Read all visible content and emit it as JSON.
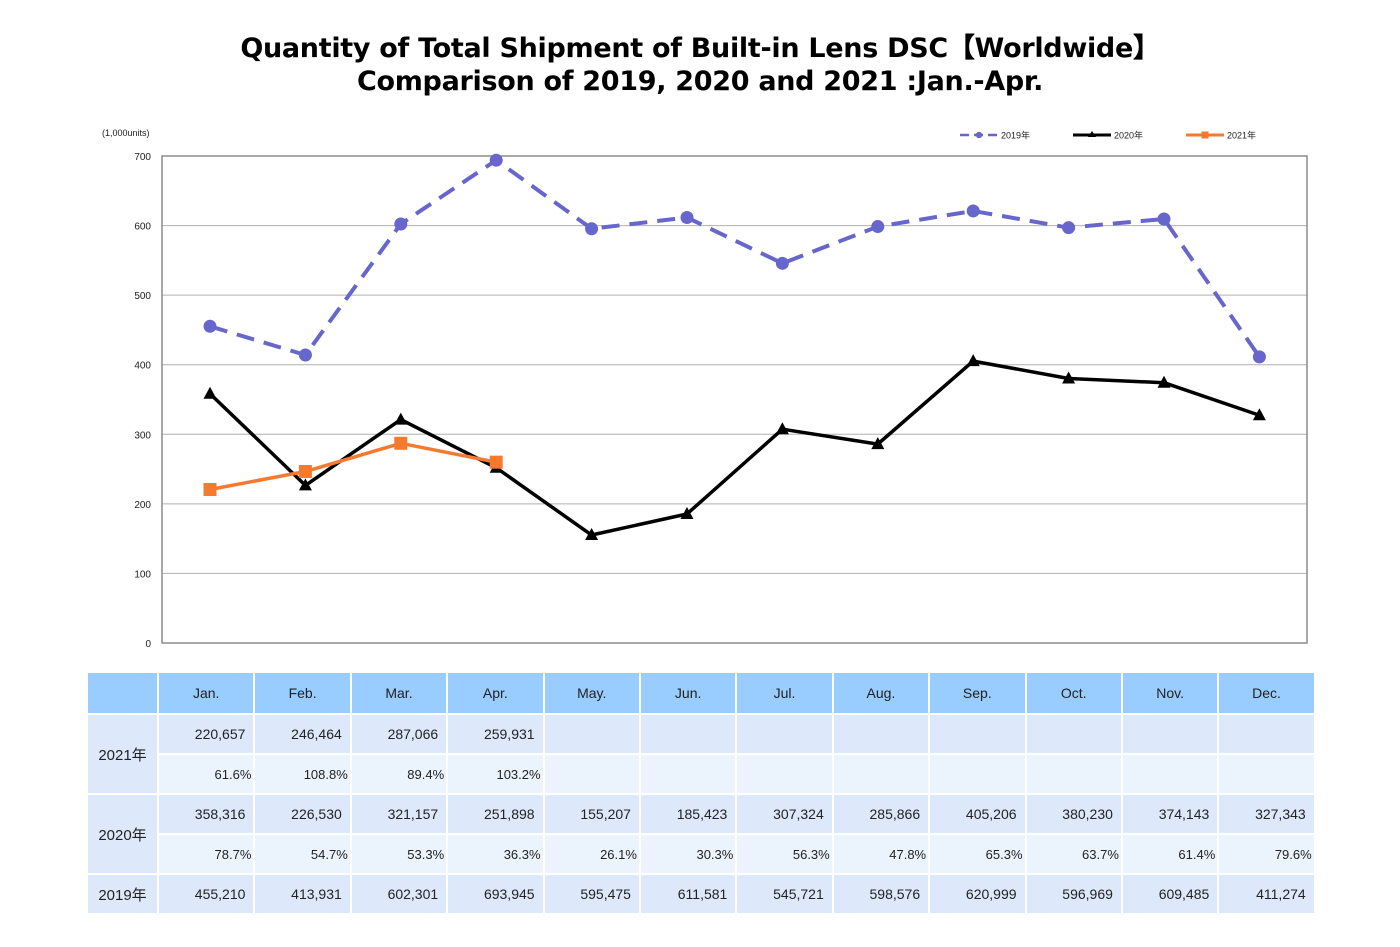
{
  "chart_data": {
    "type": "line",
    "title": "Quantity of Total Shipment of Built-in Lens DSC【Worldwide】",
    "subtitle": "Comparison of 2019, 2020 and 2021 :Jan.-Apr.",
    "xlabel": "",
    "ylabel": "(1,000units)",
    "ylim": [
      0,
      700
    ],
    "yticks": [
      0,
      100,
      200,
      300,
      400,
      500,
      600,
      700
    ],
    "ytick_labels": [
      "0",
      "100",
      "200",
      "300",
      "400",
      "500",
      "600",
      "700"
    ],
    "grid": true,
    "legend_position": "top-right",
    "categories": [
      "Jan.",
      "Feb.",
      "Mar.",
      "Apr.",
      "May.",
      "Jun.",
      "Jul.",
      "Aug.",
      "Sep.",
      "Oct.",
      "Nov.",
      "Dec."
    ],
    "series": [
      {
        "name": "2019年",
        "color": "#6666cc",
        "style": "dashed",
        "marker": "circle",
        "values": [
          455.21,
          413.931,
          602.301,
          693.945,
          595.475,
          611.581,
          545.721,
          598.576,
          620.999,
          596.969,
          609.485,
          411.274
        ]
      },
      {
        "name": "2020年",
        "color": "#000000",
        "style": "solid",
        "marker": "triangle",
        "values": [
          358.316,
          226.53,
          321.157,
          251.898,
          155.207,
          185.423,
          307.324,
          285.866,
          405.206,
          380.23,
          374.143,
          327.343
        ]
      },
      {
        "name": "2021年",
        "color": "#f47a30",
        "style": "solid",
        "marker": "square",
        "values": [
          220.657,
          246.464,
          287.066,
          259.931
        ]
      }
    ]
  },
  "table": {
    "corner": "",
    "months": [
      "Jan.",
      "Feb.",
      "Mar.",
      "Apr.",
      "May.",
      "Jun.",
      "Jul.",
      "Aug.",
      "Sep.",
      "Oct.",
      "Nov.",
      "Dec."
    ],
    "rows": [
      {
        "year": "2021年",
        "values": [
          "220,657",
          "246,464",
          "287,066",
          "259,931",
          "",
          "",
          "",
          "",
          "",
          "",
          "",
          ""
        ],
        "percents": [
          "61.6%",
          "108.8%",
          "89.4%",
          "103.2%",
          "",
          "",
          "",
          "",
          "",
          "",
          "",
          ""
        ]
      },
      {
        "year": "2020年",
        "values": [
          "358,316",
          "226,530",
          "321,157",
          "251,898",
          "155,207",
          "185,423",
          "307,324",
          "285,866",
          "405,206",
          "380,230",
          "374,143",
          "327,343"
        ],
        "percents": [
          "78.7%",
          "54.7%",
          "53.3%",
          "36.3%",
          "26.1%",
          "30.3%",
          "56.3%",
          "47.8%",
          "65.3%",
          "63.7%",
          "61.4%",
          "79.6%"
        ]
      },
      {
        "year": "2019年",
        "values": [
          "455,210",
          "413,931",
          "602,301",
          "693,945",
          "595,475",
          "611,581",
          "545,721",
          "598,576",
          "620,999",
          "596,969",
          "609,485",
          "411,274"
        ]
      }
    ]
  }
}
